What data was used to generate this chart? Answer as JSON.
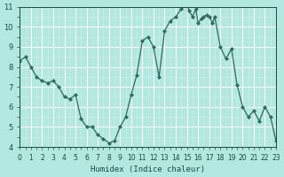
{
  "x": [
    0,
    0.5,
    1,
    1.5,
    2,
    2.5,
    3,
    3.5,
    4,
    4.5,
    5,
    5.5,
    6,
    6.5,
    7,
    7.5,
    8,
    8.5,
    9,
    9.5,
    10,
    10.5,
    11,
    11.5,
    12,
    12.5,
    13,
    13.5,
    14,
    14.5,
    15,
    15.2,
    15.5,
    15.8,
    16,
    16.3,
    16.5,
    16.8,
    17,
    17.3,
    17.5,
    18,
    18.5,
    19,
    19.5,
    20,
    20.5,
    21,
    21.5,
    22,
    22.5,
    23
  ],
  "y": [
    8.3,
    8.5,
    8.0,
    7.5,
    7.3,
    7.2,
    7.3,
    7.0,
    6.5,
    6.4,
    6.6,
    5.4,
    5.0,
    5.0,
    4.6,
    4.4,
    4.2,
    4.3,
    5.0,
    5.5,
    6.6,
    7.6,
    9.3,
    9.5,
    9.0,
    7.5,
    9.8,
    10.3,
    10.5,
    10.9,
    11.1,
    10.8,
    10.5,
    10.9,
    10.2,
    10.4,
    10.5,
    10.6,
    10.5,
    10.2,
    10.5,
    9.0,
    8.4,
    8.9,
    7.1,
    6.0,
    5.5,
    5.8,
    5.3,
    6.0,
    5.5,
    4.3
  ],
  "xlabel": "Humidex (Indice chaleur)",
  "ylabel": "",
  "xlim": [
    0,
    23
  ],
  "ylim": [
    4,
    11
  ],
  "yticks": [
    4,
    5,
    6,
    7,
    8,
    9,
    10,
    11
  ],
  "xticks": [
    0,
    1,
    2,
    3,
    4,
    5,
    6,
    7,
    8,
    9,
    10,
    11,
    12,
    13,
    14,
    15,
    16,
    17,
    18,
    19,
    20,
    21,
    22,
    23
  ],
  "xtick_labels": [
    "0",
    "1",
    "2",
    "3",
    "4",
    "5",
    "6",
    "7",
    "8",
    "9",
    "10",
    "11",
    "12",
    "13",
    "14",
    "15",
    "16",
    "17",
    "18",
    "19",
    "20",
    "21",
    "22",
    "23"
  ],
  "line_color": "#2e6b5e",
  "marker_color": "#2e6b5e",
  "bg_color": "#b2e8e0",
  "grid_color": "#ffffff",
  "grid_color2": "#d0f0ea",
  "font_color": "#1a4a40"
}
